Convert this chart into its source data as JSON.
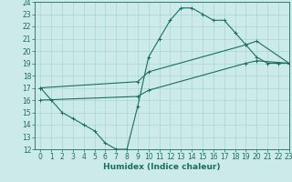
{
  "line1_x": [
    0,
    1,
    2,
    3,
    4,
    5,
    6,
    7,
    8,
    9,
    10,
    11,
    12,
    13,
    14,
    15,
    16,
    17,
    18,
    19,
    20,
    21,
    22,
    23
  ],
  "line1_y": [
    17,
    16,
    15,
    14.5,
    14,
    13.5,
    12.5,
    12,
    12,
    15.5,
    19.5,
    21,
    22.5,
    23.5,
    23.5,
    23,
    22.5,
    22.5,
    21.5,
    20.5,
    19.5,
    19,
    19,
    19
  ],
  "line2_x": [
    0,
    9,
    10,
    19,
    20,
    23
  ],
  "line2_y": [
    17,
    17.5,
    18.3,
    20.5,
    20.8,
    19.0
  ],
  "line3_x": [
    0,
    9,
    10,
    19,
    20,
    23
  ],
  "line3_y": [
    16,
    16.3,
    16.8,
    19.0,
    19.2,
    19.0
  ],
  "color": "#1a6e5e",
  "bg_color": "#cceaea",
  "grid_color": "#a8d5d5",
  "xlabel": "Humidex (Indice chaleur)",
  "ylim": [
    12,
    24
  ],
  "xlim": [
    -0.5,
    23
  ],
  "yticks": [
    12,
    13,
    14,
    15,
    16,
    17,
    18,
    19,
    20,
    21,
    22,
    23,
    24
  ],
  "xticks": [
    0,
    1,
    2,
    3,
    4,
    5,
    6,
    7,
    8,
    9,
    10,
    11,
    12,
    13,
    14,
    15,
    16,
    17,
    18,
    19,
    20,
    21,
    22,
    23
  ],
  "xlabel_fontsize": 6.5,
  "tick_fontsize": 5.5,
  "linewidth": 0.8,
  "markersize": 3.0
}
